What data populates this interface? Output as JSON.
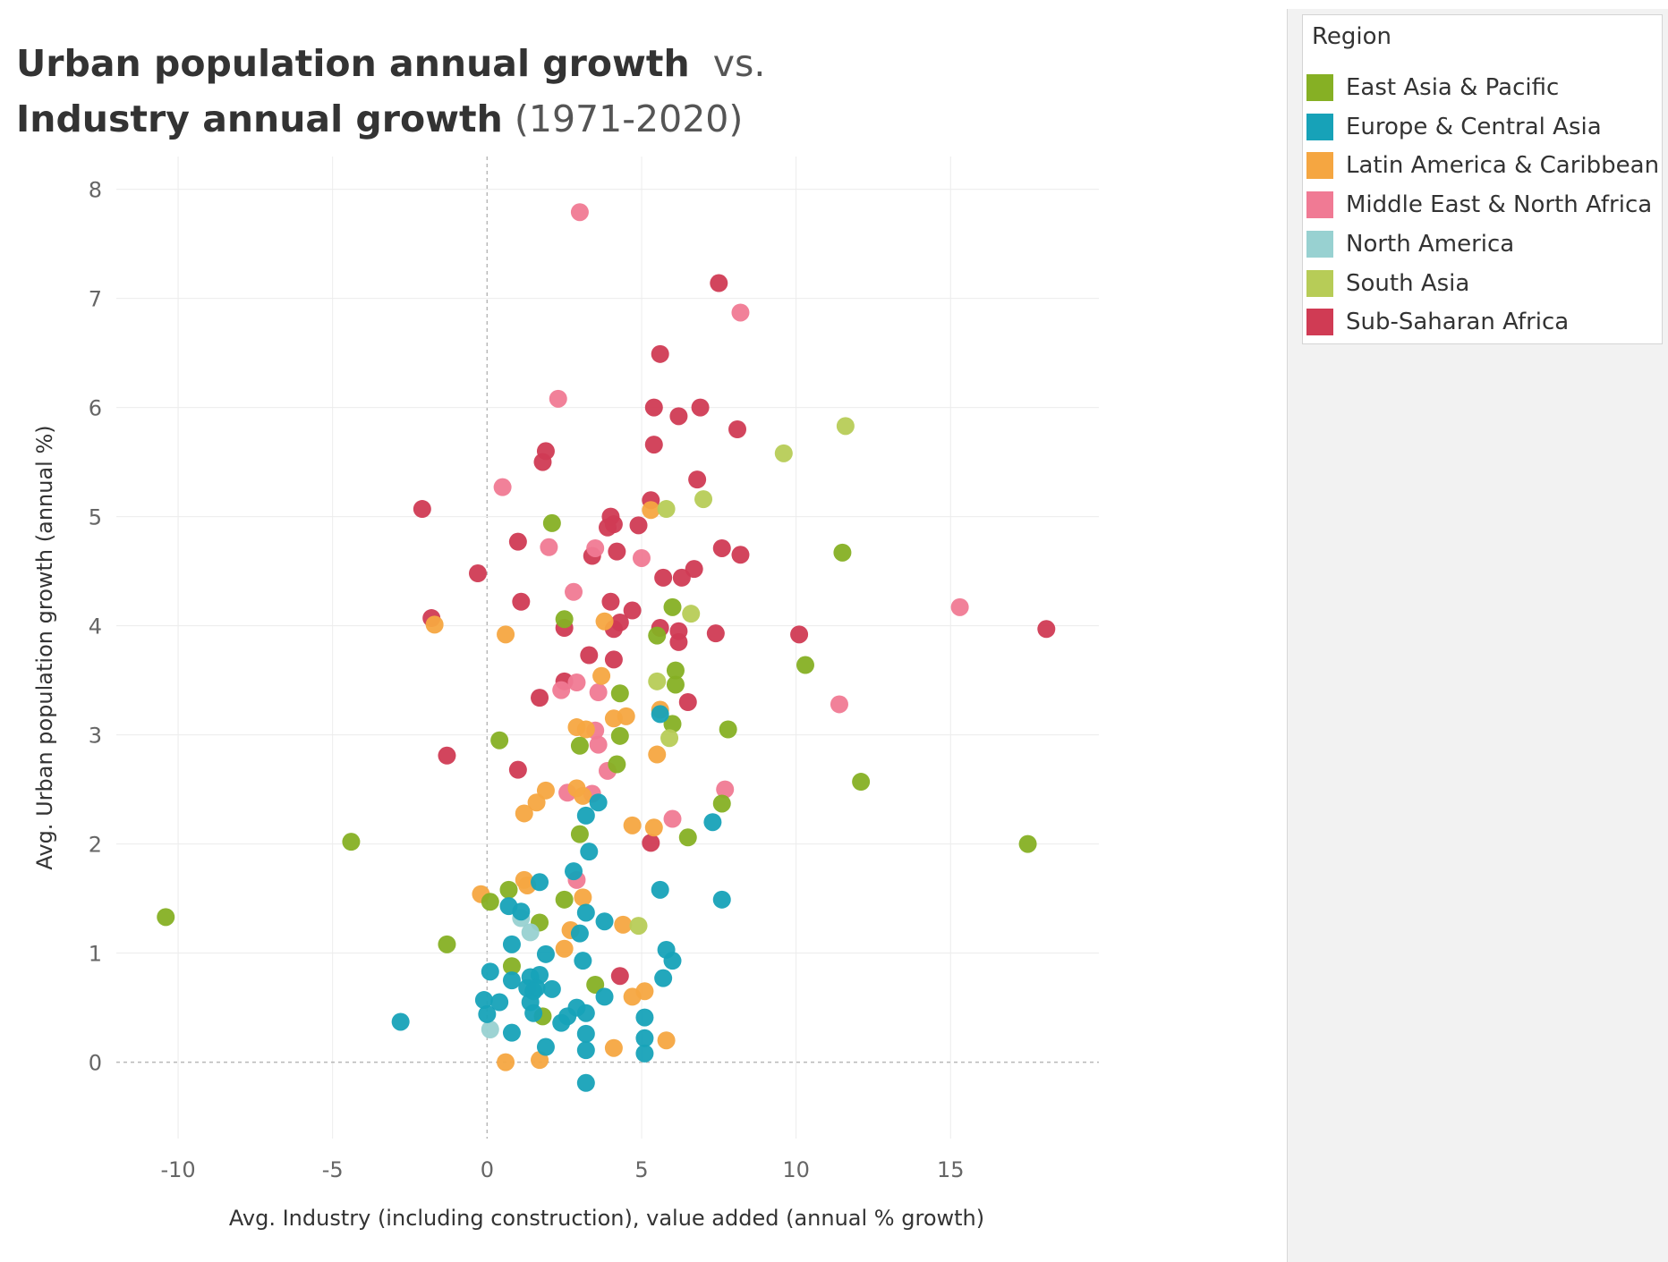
{
  "title": {
    "bold_1": "Urban population annual growth",
    "light_1": "vs.",
    "bold_2": "Industry annual growth",
    "light_2": "(1971-2020)"
  },
  "legend": {
    "title": "Region",
    "items": [
      {
        "label": "East Asia & Pacific",
        "color": "#86b024"
      },
      {
        "label": "Europe & Central Asia",
        "color": "#17a2b8"
      },
      {
        "label": "Latin America & Caribbean",
        "color": "#f5a641"
      },
      {
        "label": "Middle East & North Africa",
        "color": "#f07a94"
      },
      {
        "label": "North America",
        "color": "#98d1d1"
      },
      {
        "label": "South Asia",
        "color": "#b7cc57"
      },
      {
        "label": "Sub-Saharan Africa",
        "color": "#d03b54"
      }
    ]
  },
  "chart_data": {
    "type": "scatter",
    "xlabel": "Avg. Industry (including construction), value added (annual % growth)",
    "ylabel": "Avg. Urban population growth (annual %)",
    "xlim": [
      -12,
      19.8
    ],
    "ylim": [
      -0.7,
      8.3
    ],
    "xticks": [
      -10,
      -5,
      0,
      5,
      10,
      15
    ],
    "yticks": [
      0,
      1,
      2,
      3,
      4,
      5,
      6,
      7,
      8
    ],
    "grid": true,
    "legend_position": "top-right",
    "series": [
      {
        "name": "Sub-Saharan Africa",
        "points": [
          [
            7.5,
            7.14
          ],
          [
            5.6,
            6.49
          ],
          [
            5.4,
            6.0
          ],
          [
            6.9,
            6.0
          ],
          [
            6.2,
            5.92
          ],
          [
            8.1,
            5.8
          ],
          [
            1.9,
            5.6
          ],
          [
            1.8,
            5.5
          ],
          [
            5.4,
            5.66
          ],
          [
            6.8,
            5.34
          ],
          [
            5.3,
            5.15
          ],
          [
            -2.1,
            5.07
          ],
          [
            4.0,
            5.0
          ],
          [
            4.1,
            4.93
          ],
          [
            3.9,
            4.9
          ],
          [
            4.9,
            4.92
          ],
          [
            1.0,
            4.77
          ],
          [
            4.2,
            4.68
          ],
          [
            3.4,
            4.64
          ],
          [
            7.6,
            4.71
          ],
          [
            8.2,
            4.65
          ],
          [
            6.7,
            4.52
          ],
          [
            5.7,
            4.44
          ],
          [
            6.3,
            4.44
          ],
          [
            -0.3,
            4.48
          ],
          [
            1.1,
            4.22
          ],
          [
            4.0,
            4.22
          ],
          [
            4.7,
            4.14
          ],
          [
            -1.8,
            4.07
          ],
          [
            2.5,
            3.98
          ],
          [
            4.1,
            3.97
          ],
          [
            4.3,
            4.03
          ],
          [
            5.6,
            3.98
          ],
          [
            6.2,
            3.95
          ],
          [
            6.2,
            3.85
          ],
          [
            7.4,
            3.93
          ],
          [
            10.1,
            3.92
          ],
          [
            18.1,
            3.97
          ],
          [
            3.3,
            3.73
          ],
          [
            4.1,
            3.69
          ],
          [
            2.5,
            3.49
          ],
          [
            1.7,
            3.34
          ],
          [
            6.5,
            3.3
          ],
          [
            -1.3,
            2.81
          ],
          [
            1.0,
            2.68
          ],
          [
            5.3,
            2.01
          ],
          [
            4.3,
            0.79
          ]
        ]
      },
      {
        "name": "Middle East & North Africa",
        "points": [
          [
            3.0,
            7.79
          ],
          [
            8.2,
            6.87
          ],
          [
            2.3,
            6.08
          ],
          [
            0.5,
            5.27
          ],
          [
            2.0,
            4.72
          ],
          [
            3.5,
            4.71
          ],
          [
            5.0,
            4.62
          ],
          [
            2.8,
            4.31
          ],
          [
            15.3,
            4.17
          ],
          [
            2.4,
            3.41
          ],
          [
            2.9,
            3.48
          ],
          [
            3.6,
            3.39
          ],
          [
            11.4,
            3.28
          ],
          [
            3.5,
            3.04
          ],
          [
            3.6,
            2.91
          ],
          [
            3.9,
            2.67
          ],
          [
            2.6,
            2.47
          ],
          [
            3.4,
            2.46
          ],
          [
            7.7,
            2.5
          ],
          [
            6.0,
            2.23
          ],
          [
            2.9,
            1.67
          ]
        ]
      },
      {
        "name": "Latin America & Caribbean",
        "points": [
          [
            5.3,
            5.06
          ],
          [
            3.8,
            4.04
          ],
          [
            -1.7,
            4.01
          ],
          [
            0.6,
            3.92
          ],
          [
            3.7,
            3.54
          ],
          [
            5.6,
            3.23
          ],
          [
            4.1,
            3.15
          ],
          [
            4.5,
            3.17
          ],
          [
            2.9,
            3.07
          ],
          [
            3.2,
            3.05
          ],
          [
            5.5,
            2.82
          ],
          [
            1.9,
            2.49
          ],
          [
            2.9,
            2.51
          ],
          [
            3.1,
            2.44
          ],
          [
            1.6,
            2.38
          ],
          [
            1.2,
            2.28
          ],
          [
            4.7,
            2.17
          ],
          [
            5.4,
            2.15
          ],
          [
            -0.2,
            1.54
          ],
          [
            1.2,
            1.67
          ],
          [
            1.3,
            1.62
          ],
          [
            3.1,
            1.51
          ],
          [
            2.7,
            1.21
          ],
          [
            4.4,
            1.26
          ],
          [
            2.5,
            1.04
          ],
          [
            4.7,
            0.6
          ],
          [
            5.1,
            0.65
          ],
          [
            4.1,
            0.13
          ],
          [
            5.8,
            0.2
          ],
          [
            0.6,
            0.0
          ],
          [
            1.7,
            0.02
          ]
        ]
      },
      {
        "name": "East Asia & Pacific",
        "points": [
          [
            2.1,
            4.94
          ],
          [
            11.5,
            4.67
          ],
          [
            2.5,
            4.06
          ],
          [
            5.5,
            3.91
          ],
          [
            6.0,
            4.17
          ],
          [
            6.1,
            3.59
          ],
          [
            6.1,
            3.46
          ],
          [
            10.3,
            3.64
          ],
          [
            4.3,
            3.38
          ],
          [
            7.8,
            3.05
          ],
          [
            6.0,
            3.1
          ],
          [
            4.3,
            2.99
          ],
          [
            0.4,
            2.95
          ],
          [
            3.0,
            2.9
          ],
          [
            4.2,
            2.73
          ],
          [
            12.1,
            2.57
          ],
          [
            7.6,
            2.37
          ],
          [
            3.0,
            2.09
          ],
          [
            6.5,
            2.06
          ],
          [
            -4.4,
            2.02
          ],
          [
            17.5,
            2.0
          ],
          [
            0.7,
            1.58
          ],
          [
            0.1,
            1.47
          ],
          [
            2.5,
            1.49
          ],
          [
            1.7,
            1.28
          ],
          [
            -10.4,
            1.33
          ],
          [
            -1.3,
            1.08
          ],
          [
            0.8,
            0.88
          ],
          [
            3.5,
            0.71
          ],
          [
            1.8,
            0.42
          ]
        ]
      },
      {
        "name": "South Asia",
        "points": [
          [
            11.6,
            5.83
          ],
          [
            9.6,
            5.58
          ],
          [
            7.0,
            5.16
          ],
          [
            5.8,
            5.07
          ],
          [
            6.6,
            4.11
          ],
          [
            5.5,
            3.49
          ],
          [
            5.9,
            2.97
          ],
          [
            4.9,
            1.25
          ]
        ]
      },
      {
        "name": "North America",
        "points": [
          [
            1.1,
            1.32
          ],
          [
            1.4,
            1.19
          ],
          [
            0.1,
            0.3
          ]
        ]
      },
      {
        "name": "Europe & Central Asia",
        "points": [
          [
            5.6,
            3.19
          ],
          [
            3.6,
            2.38
          ],
          [
            3.2,
            2.26
          ],
          [
            7.3,
            2.2
          ],
          [
            3.3,
            1.93
          ],
          [
            2.8,
            1.75
          ],
          [
            1.7,
            1.65
          ],
          [
            5.6,
            1.58
          ],
          [
            7.6,
            1.49
          ],
          [
            0.7,
            1.43
          ],
          [
            1.1,
            1.38
          ],
          [
            3.2,
            1.37
          ],
          [
            3.8,
            1.29
          ],
          [
            3.0,
            1.18
          ],
          [
            0.8,
            1.08
          ],
          [
            5.8,
            1.03
          ],
          [
            1.9,
            0.99
          ],
          [
            6.0,
            0.93
          ],
          [
            3.1,
            0.93
          ],
          [
            0.1,
            0.83
          ],
          [
            1.4,
            0.78
          ],
          [
            1.7,
            0.8
          ],
          [
            0.8,
            0.75
          ],
          [
            5.7,
            0.77
          ],
          [
            1.3,
            0.68
          ],
          [
            1.6,
            0.68
          ],
          [
            1.5,
            0.65
          ],
          [
            2.1,
            0.67
          ],
          [
            3.8,
            0.6
          ],
          [
            -0.1,
            0.57
          ],
          [
            0.4,
            0.55
          ],
          [
            1.4,
            0.55
          ],
          [
            2.9,
            0.5
          ],
          [
            1.5,
            0.45
          ],
          [
            3.2,
            0.45
          ],
          [
            0.0,
            0.44
          ],
          [
            2.6,
            0.42
          ],
          [
            5.1,
            0.41
          ],
          [
            2.4,
            0.36
          ],
          [
            -2.8,
            0.37
          ],
          [
            0.8,
            0.27
          ],
          [
            3.2,
            0.26
          ],
          [
            5.1,
            0.22
          ],
          [
            1.9,
            0.14
          ],
          [
            3.2,
            0.11
          ],
          [
            5.1,
            0.08
          ],
          [
            3.2,
            -0.19
          ]
        ]
      }
    ]
  }
}
